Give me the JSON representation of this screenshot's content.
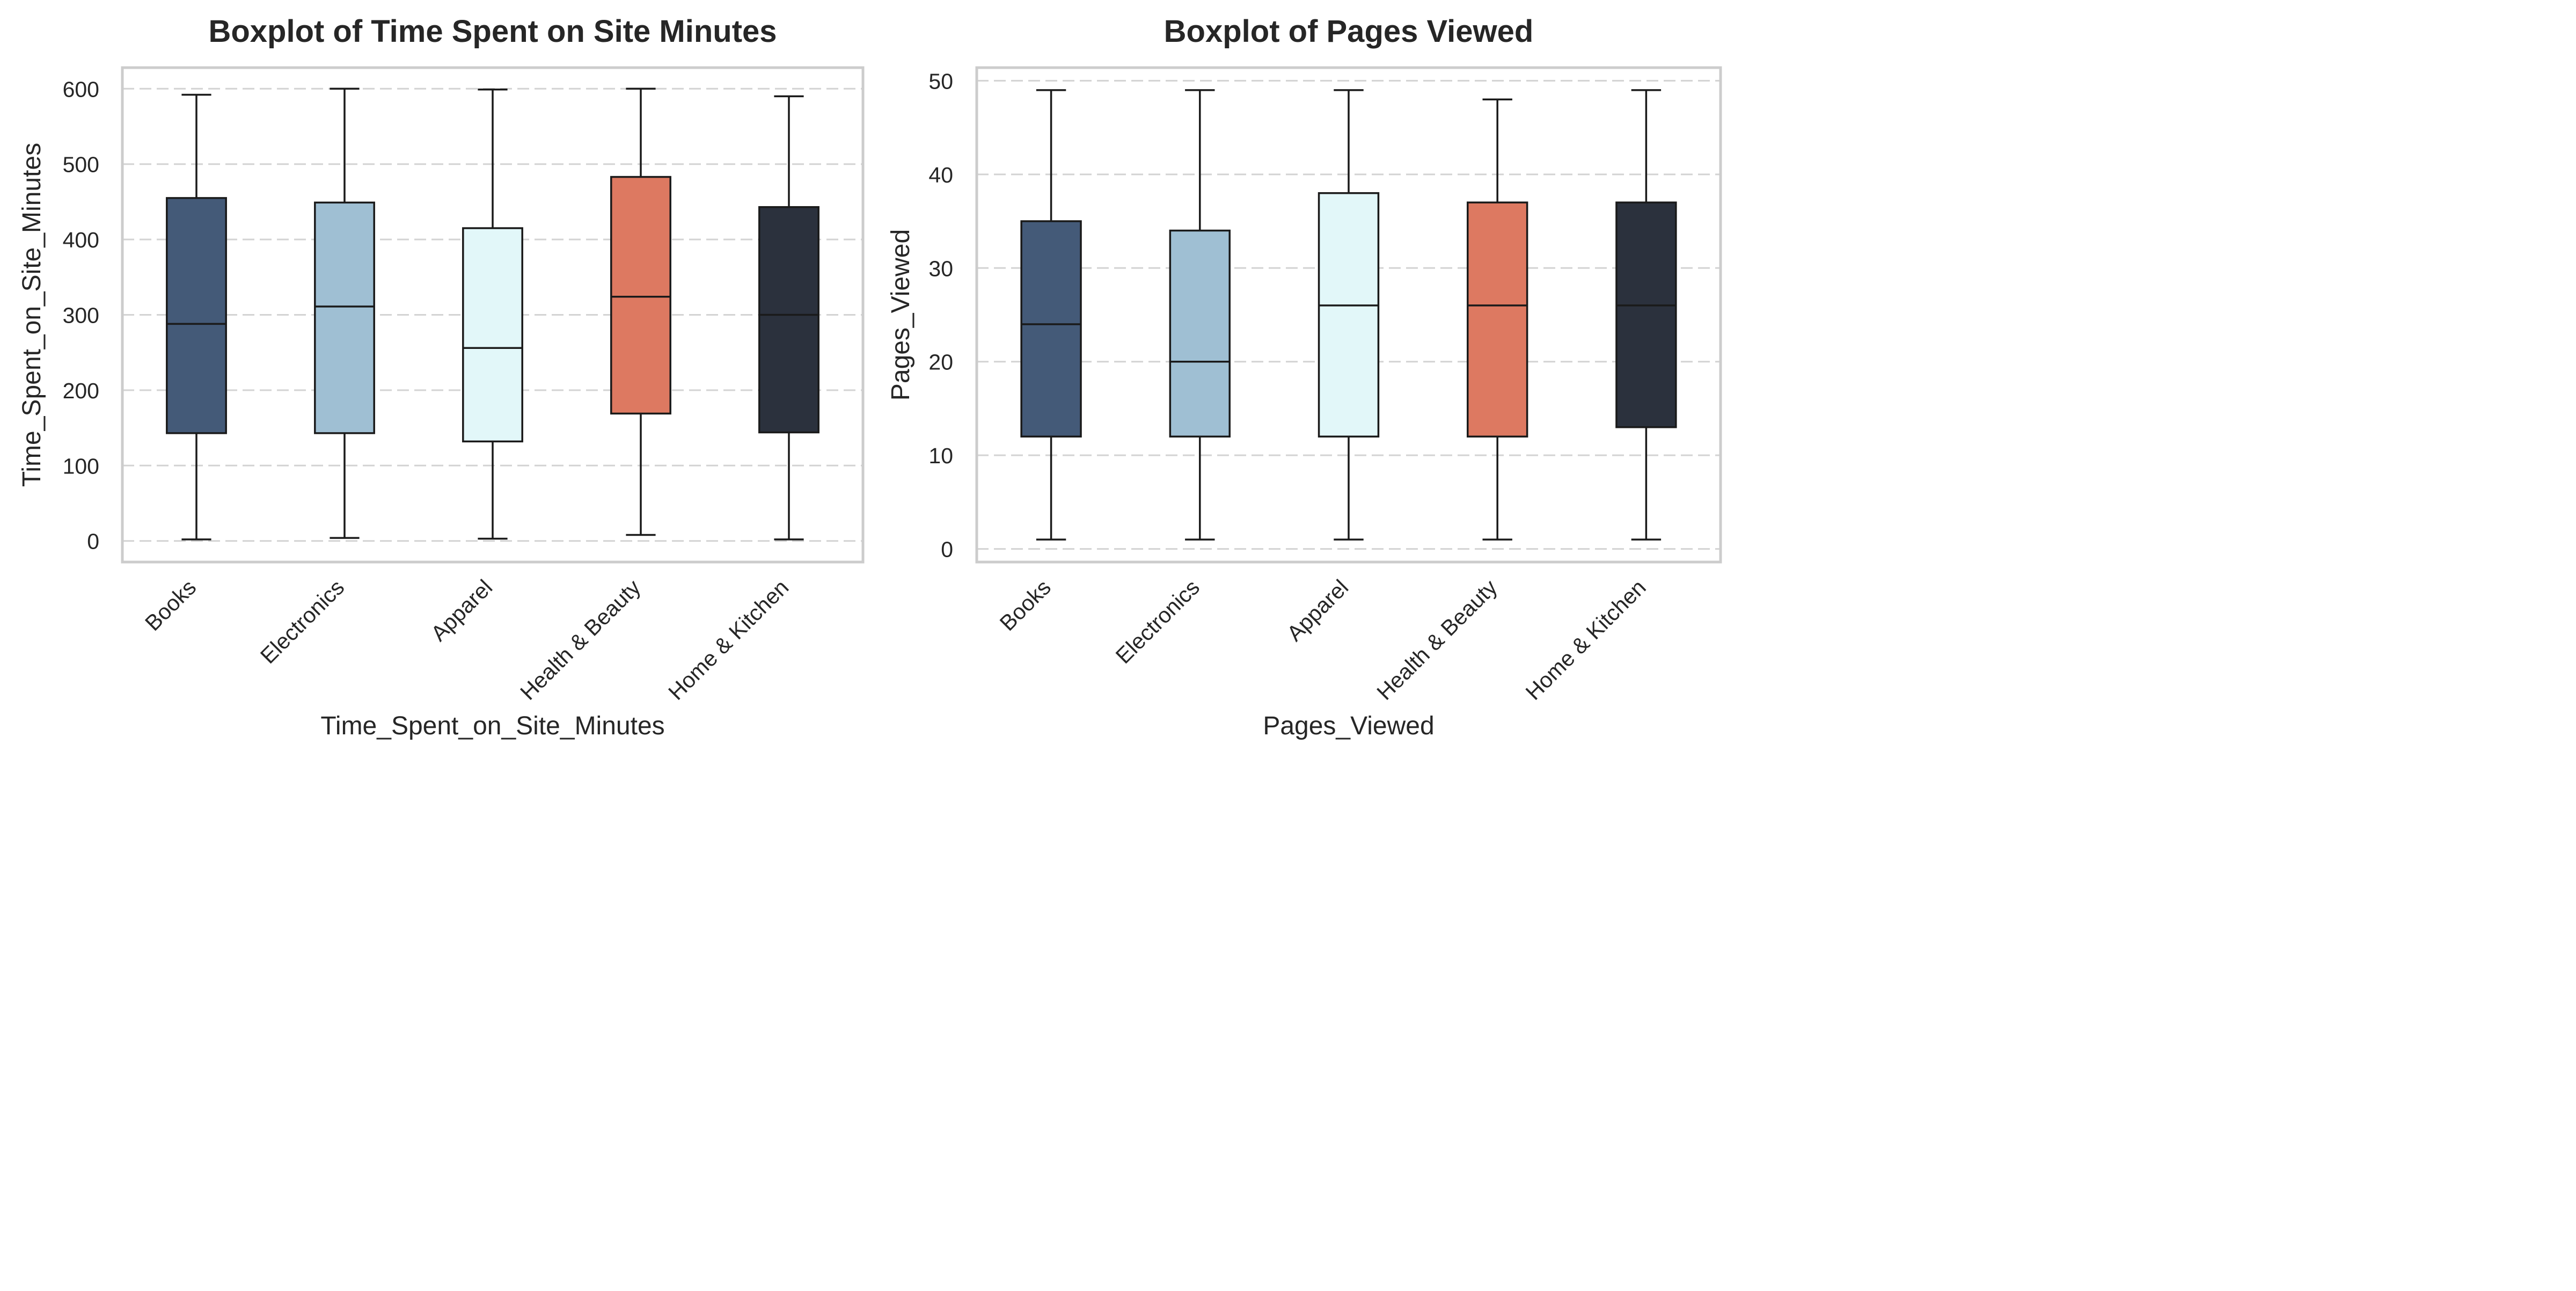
{
  "colors": {
    "box_fills": [
      "#445a78",
      "#9fbfd3",
      "#e2f7f9",
      "#dd7961",
      "#2b313d"
    ],
    "box_edge": "#1a1a1a",
    "frame": "#cccccc",
    "grid": "#d3d3d3",
    "background": "#ffffff"
  },
  "chart_data": [
    {
      "type": "box",
      "title": "Boxplot of Time Spent on Site Minutes",
      "xlabel": "Time_Spent_on_Site_Minutes",
      "ylabel": "Time_Spent_on_Site_Minutes",
      "ylim": [
        -28,
        628
      ],
      "yticks": [
        0,
        100,
        200,
        300,
        400,
        500,
        600
      ],
      "grid": true,
      "grid_axis": "y",
      "categories": [
        "Books",
        "Electronics",
        "Apparel",
        "Health & Beauty",
        "Home & Kitchen"
      ],
      "boxes": [
        {
          "min": 2,
          "q1": 143,
          "median": 288,
          "q3": 455,
          "max": 592
        },
        {
          "min": 4,
          "q1": 143,
          "median": 311,
          "q3": 449,
          "max": 600
        },
        {
          "min": 3,
          "q1": 132,
          "median": 256,
          "q3": 415,
          "max": 599
        },
        {
          "min": 8,
          "q1": 169,
          "median": 324,
          "q3": 483,
          "max": 600
        },
        {
          "min": 2,
          "q1": 144,
          "median": 300,
          "q3": 443,
          "max": 590
        }
      ]
    },
    {
      "type": "box",
      "title": "Boxplot of Pages Viewed",
      "xlabel": "Pages_Viewed",
      "ylabel": "Pages_Viewed",
      "ylim": [
        -1.4,
        51.4
      ],
      "yticks": [
        0,
        10,
        20,
        30,
        40,
        50
      ],
      "grid": true,
      "grid_axis": "y",
      "categories": [
        "Books",
        "Electronics",
        "Apparel",
        "Health & Beauty",
        "Home & Kitchen"
      ],
      "boxes": [
        {
          "min": 1,
          "q1": 12,
          "median": 24,
          "q3": 35,
          "max": 49
        },
        {
          "min": 1,
          "q1": 12,
          "median": 20,
          "q3": 34,
          "max": 49
        },
        {
          "min": 1,
          "q1": 12,
          "median": 26,
          "q3": 38,
          "max": 49
        },
        {
          "min": 1,
          "q1": 12,
          "median": 26,
          "q3": 37,
          "max": 48
        },
        {
          "min": 1,
          "q1": 13,
          "median": 26,
          "q3": 37,
          "max": 49
        }
      ]
    }
  ]
}
